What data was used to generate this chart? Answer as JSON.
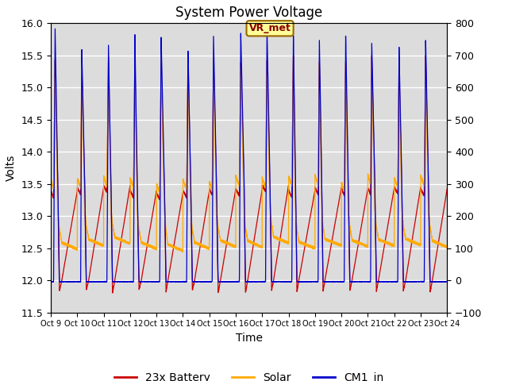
{
  "title": "System Power Voltage",
  "xlabel": "Time",
  "ylabel_left": "Volts",
  "ylim_left": [
    11.5,
    16.0
  ],
  "ylim_right": [
    -100,
    800
  ],
  "yticks_left": [
    11.5,
    12.0,
    12.5,
    13.0,
    13.5,
    14.0,
    14.5,
    15.0,
    15.5,
    16.0
  ],
  "yticks_right": [
    -100,
    0,
    100,
    200,
    300,
    400,
    500,
    600,
    700,
    800
  ],
  "xtick_labels": [
    "Oct 9",
    "Oct 10",
    "Oct 11",
    "Oct 12",
    "Oct 13",
    "Oct 14",
    "Oct 15",
    "Oct 16",
    "Oct 17",
    "Oct 18",
    "Oct 19",
    "Oct 20",
    "Oct 21",
    "Oct 22",
    "Oct 23",
    "Oct 24"
  ],
  "color_battery": "#cc0000",
  "color_solar": "#ffaa00",
  "color_cm1": "#0000cc",
  "legend_labels": [
    "23x Battery",
    "Solar",
    "CM1_in"
  ],
  "annotation_text": "VR_met",
  "bg_color": "#dcdcdc",
  "grid_color": "#ffffff",
  "title_fontsize": 12
}
